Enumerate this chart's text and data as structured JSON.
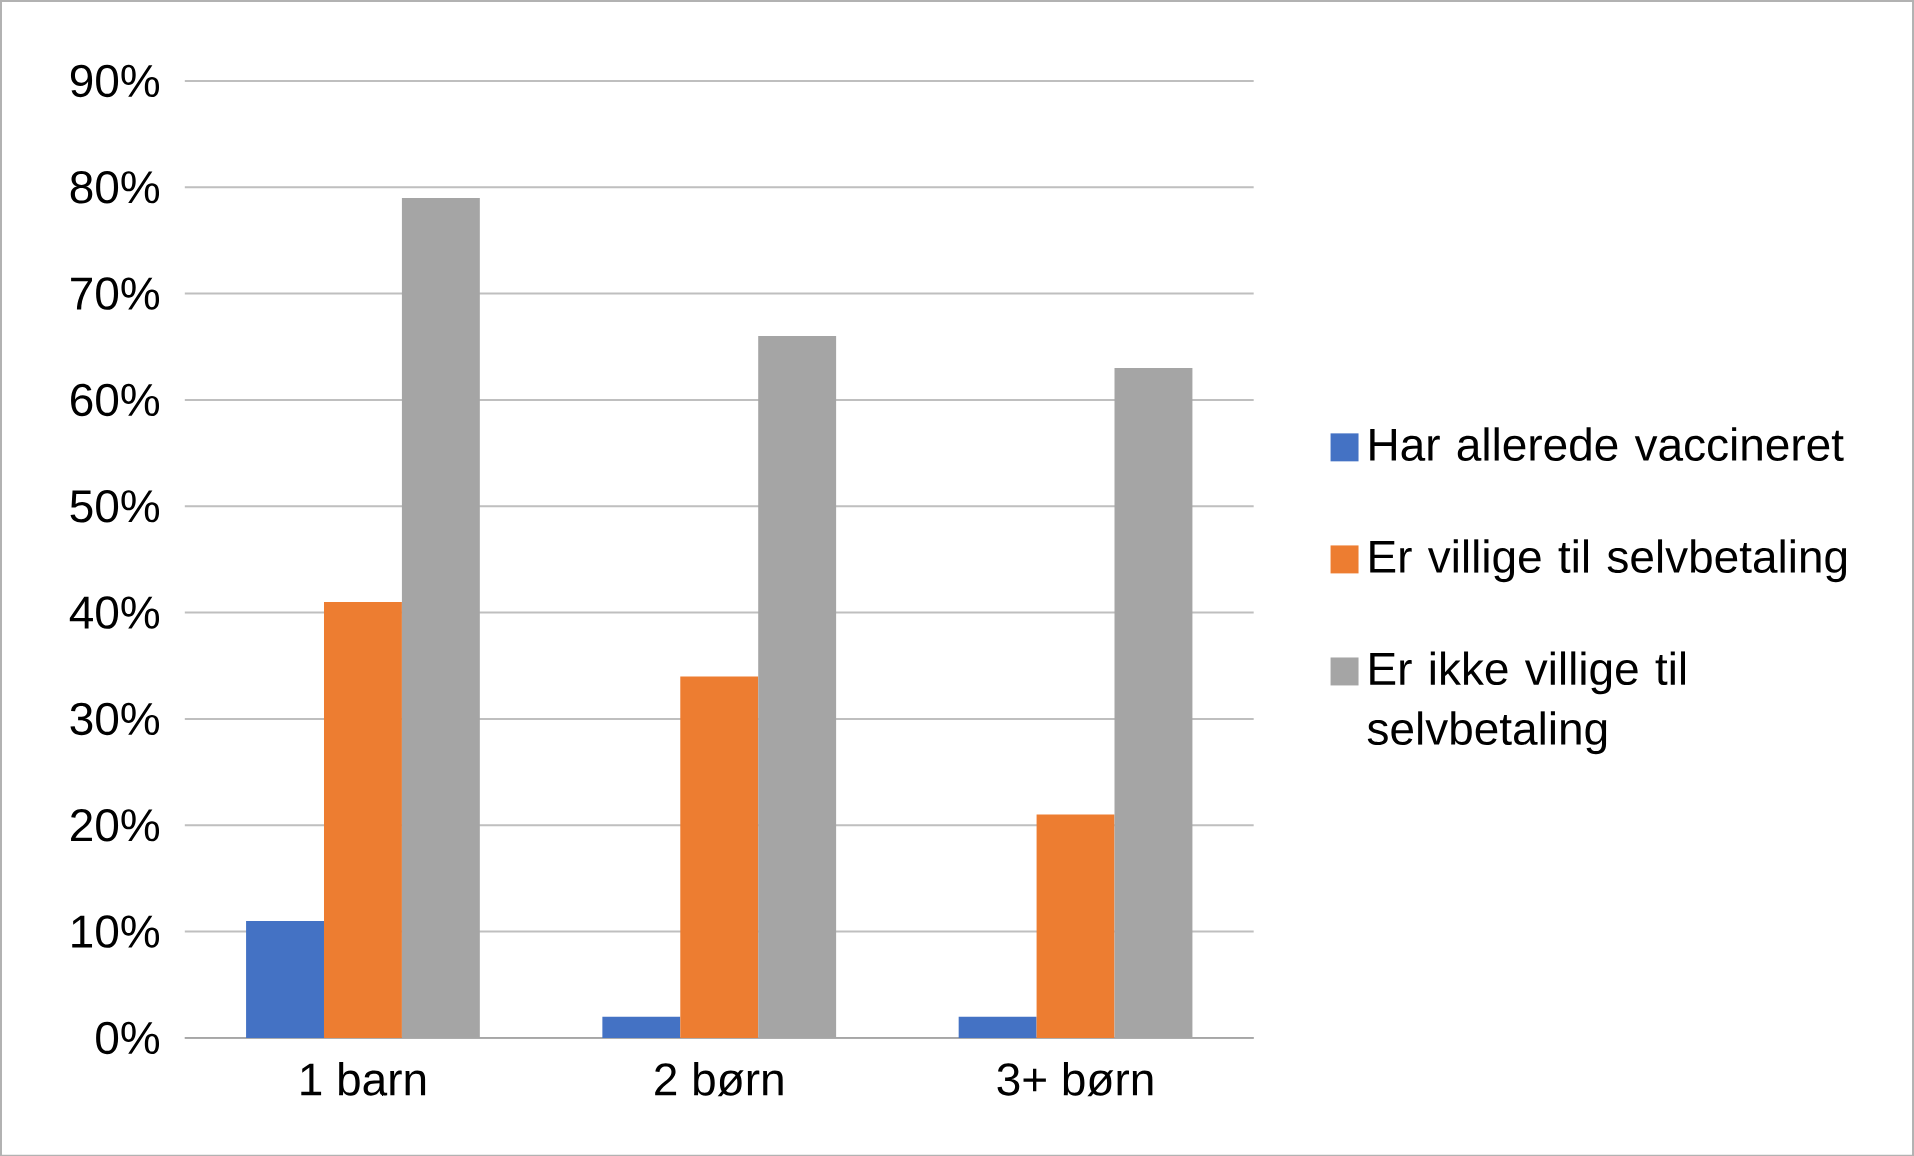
{
  "chart_data": {
    "type": "bar",
    "categories": [
      "1 barn",
      "2 børn",
      "3+ børn"
    ],
    "series": [
      {
        "name": "Har allerede vaccineret",
        "color": "#4472c4",
        "values": [
          11,
          2,
          2
        ]
      },
      {
        "name": "Er villige til selvbetaling",
        "color": "#ed7d31",
        "values": [
          41,
          34,
          21
        ]
      },
      {
        "name": "Er ikke villige til selvbetaling",
        "color": "#a5a5a5",
        "values": [
          79,
          66,
          63
        ]
      }
    ],
    "ylim": [
      0,
      90
    ],
    "yticks": [
      {
        "value": 0,
        "label": "0%"
      },
      {
        "value": 10,
        "label": "10%"
      },
      {
        "value": 20,
        "label": "20%"
      },
      {
        "value": 30,
        "label": "30%"
      },
      {
        "value": 40,
        "label": "40%"
      },
      {
        "value": 50,
        "label": "50%"
      },
      {
        "value": 60,
        "label": "60%"
      },
      {
        "value": 70,
        "label": "70%"
      },
      {
        "value": 80,
        "label": "80%"
      },
      {
        "value": 90,
        "label": "90%"
      }
    ],
    "grid": "y",
    "legend": "right"
  }
}
